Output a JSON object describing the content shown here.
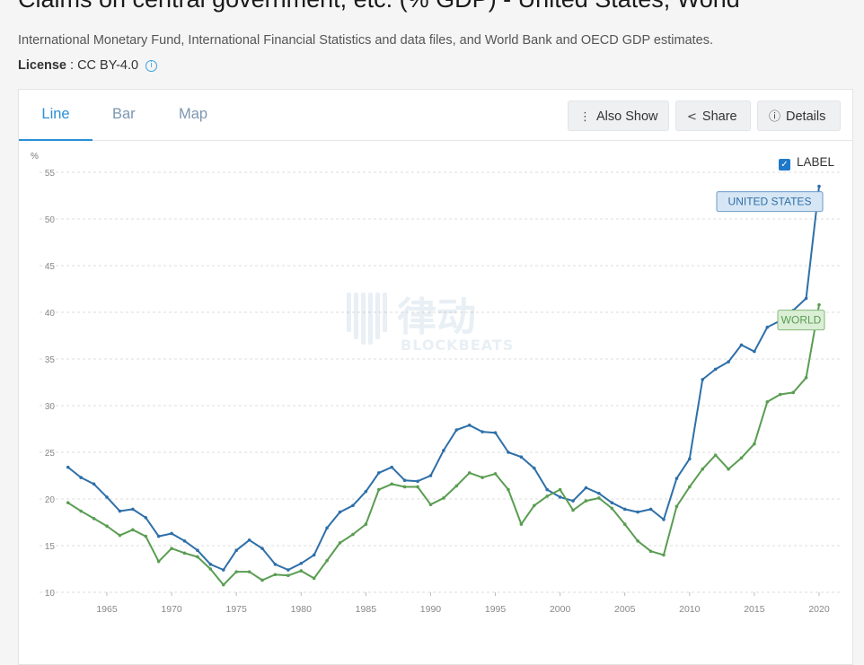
{
  "header": {
    "title": "Claims on central government, etc. (% GDP) - United States, World",
    "source": "International Monetary Fund, International Financial Statistics and data files, and World Bank and OECD GDP estimates.",
    "license_label": "License",
    "license_value": " : CC BY-4.0"
  },
  "tabs": [
    {
      "label": "Line",
      "active": true
    },
    {
      "label": "Bar",
      "active": false
    },
    {
      "label": "Map",
      "active": false
    }
  ],
  "toolbar": {
    "also_show": "Also Show",
    "share": "Share",
    "details": "Details"
  },
  "label_toggle": {
    "label": "LABEL",
    "checked": true
  },
  "icons": {
    "also_show": "more-vertical-icon",
    "share": "share-icon",
    "details": "info-icon",
    "license_info": "info-icon",
    "checkbox": "checkbox-checked-icon"
  },
  "watermark": {
    "text": "BLOCKBEATS",
    "cjk": "律动"
  },
  "chart_data": {
    "type": "line",
    "ylabel": "%",
    "ylim": [
      10,
      55
    ],
    "yticks": [
      10,
      15,
      20,
      25,
      30,
      35,
      40,
      45,
      50,
      55
    ],
    "xlim": [
      1961,
      2021
    ],
    "xticks": [
      1965,
      1970,
      1975,
      1980,
      1985,
      1990,
      1995,
      2000,
      2005,
      2010,
      2015,
      2020
    ],
    "grid": true,
    "series": [
      {
        "name": "UNITED STATES",
        "color": "#2e6fa8",
        "x": [
          1962,
          1963,
          1964,
          1965,
          1966,
          1967,
          1968,
          1969,
          1970,
          1971,
          1972,
          1973,
          1974,
          1975,
          1976,
          1977,
          1978,
          1979,
          1980,
          1981,
          1982,
          1983,
          1984,
          1985,
          1986,
          1987,
          1988,
          1989,
          1990,
          1991,
          1992,
          1993,
          1994,
          1995,
          1996,
          1997,
          1998,
          1999,
          2000,
          2001,
          2002,
          2003,
          2004,
          2005,
          2006,
          2007,
          2008,
          2009,
          2010,
          2011,
          2012,
          2013,
          2014,
          2015,
          2016,
          2017,
          2018,
          2019,
          2020
        ],
        "y": [
          23.4,
          22.3,
          21.6,
          20.2,
          18.7,
          18.9,
          18.0,
          16.0,
          16.3,
          15.5,
          14.5,
          13.0,
          12.4,
          14.5,
          15.6,
          14.7,
          13.0,
          12.4,
          13.1,
          14.0,
          16.9,
          18.6,
          19.3,
          20.8,
          22.8,
          23.4,
          22.0,
          21.9,
          22.5,
          25.2,
          27.4,
          27.9,
          27.2,
          27.1,
          25.0,
          24.5,
          23.3,
          21.0,
          20.2,
          19.8,
          21.2,
          20.6,
          19.6,
          18.9,
          18.6,
          18.9,
          17.8,
          22.2,
          24.3,
          32.8,
          33.9,
          34.7,
          36.5,
          35.8,
          38.4,
          39.1,
          40.2,
          41.5,
          53.5
        ]
      },
      {
        "name": "WORLD",
        "color": "#5a9d52",
        "x": [
          1962,
          1963,
          1964,
          1965,
          1966,
          1967,
          1968,
          1969,
          1970,
          1971,
          1972,
          1973,
          1974,
          1975,
          1976,
          1977,
          1978,
          1979,
          1980,
          1981,
          1982,
          1983,
          1984,
          1985,
          1986,
          1987,
          1988,
          1989,
          1990,
          1991,
          1992,
          1993,
          1994,
          1995,
          1996,
          1997,
          1998,
          1999,
          2000,
          2001,
          2002,
          2003,
          2004,
          2005,
          2006,
          2007,
          2008,
          2009,
          2010,
          2011,
          2012,
          2013,
          2014,
          2015,
          2016,
          2017,
          2018,
          2019,
          2020
        ],
        "y": [
          19.6,
          18.7,
          17.9,
          17.1,
          16.1,
          16.7,
          16.0,
          13.3,
          14.7,
          14.2,
          13.8,
          12.5,
          10.8,
          12.2,
          12.2,
          11.3,
          11.9,
          11.8,
          12.3,
          11.5,
          13.4,
          15.3,
          16.2,
          17.3,
          21.0,
          21.6,
          21.3,
          21.3,
          19.4,
          20.1,
          21.4,
          22.8,
          22.3,
          22.7,
          21.0,
          17.3,
          19.3,
          20.3,
          21.0,
          18.8,
          19.8,
          20.1,
          19.0,
          17.3,
          15.5,
          14.4,
          14.0,
          19.2,
          21.3,
          23.2,
          24.7,
          23.2,
          24.4,
          25.9,
          30.4,
          31.2,
          31.4,
          33.0,
          40.8
        ]
      }
    ]
  }
}
